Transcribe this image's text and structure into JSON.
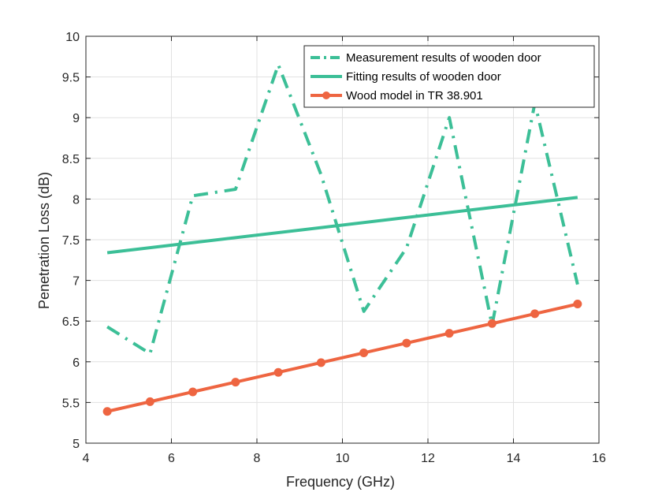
{
  "chart_data": {
    "type": "line",
    "title": "",
    "xlabel": "Frequency (GHz)",
    "ylabel": "Penetration Loss (dB)",
    "xlim": [
      4,
      16
    ],
    "ylim": [
      5,
      10
    ],
    "xticks": [
      4,
      6,
      8,
      10,
      12,
      14,
      16
    ],
    "xtick_labels": [
      "4",
      "6",
      "8",
      "10",
      "12",
      "14",
      "16"
    ],
    "yticks": [
      5,
      5.5,
      6,
      6.5,
      7,
      7.5,
      8,
      8.5,
      9,
      9.5,
      10
    ],
    "ytick_labels": [
      "5",
      "5.5",
      "6",
      "6.5",
      "7",
      "7.5",
      "8",
      "8.5",
      "9",
      "9.5",
      "10"
    ],
    "grid": true,
    "legend_position": "top-right",
    "series": [
      {
        "name": "Measurement results of wooden door",
        "style": "dash-dot",
        "color": "#3cbf97",
        "markers": false,
        "x": [
          4.5,
          5.5,
          6.5,
          7.5,
          8.5,
          9.5,
          10.5,
          11.5,
          12.5,
          13.5,
          14.5,
          15.5
        ],
        "y": [
          6.43,
          6.1,
          8.04,
          8.12,
          9.65,
          8.3,
          6.62,
          7.4,
          9.0,
          6.45,
          9.18,
          6.95
        ]
      },
      {
        "name": "Fitting results of wooden door",
        "style": "solid",
        "color": "#3cbf97",
        "markers": false,
        "x": [
          4.5,
          15.5
        ],
        "y": [
          7.34,
          8.02
        ]
      },
      {
        "name": "Wood model in TR 38.901",
        "style": "solid",
        "color": "#ee6541",
        "markers": true,
        "x": [
          4.5,
          5.5,
          6.5,
          7.5,
          8.5,
          9.5,
          10.5,
          11.5,
          12.5,
          13.5,
          14.5,
          15.5
        ],
        "y": [
          5.39,
          5.51,
          5.63,
          5.75,
          5.87,
          5.99,
          6.11,
          6.23,
          6.35,
          6.47,
          6.59,
          6.71
        ]
      }
    ]
  }
}
